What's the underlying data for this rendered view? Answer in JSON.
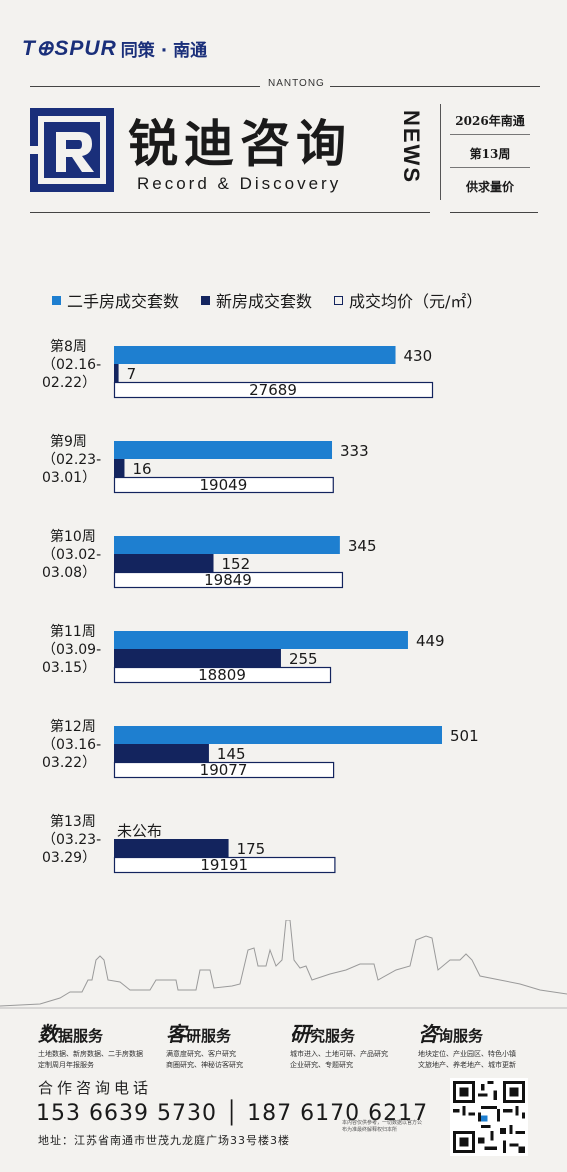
{
  "brand": {
    "logo_text": "T⊕SPUR",
    "name_cn": "同策 · 南通"
  },
  "masthead": {
    "city_en": "NANTONG",
    "title": "锐迪咨询",
    "subtitle": "Record & Discovery",
    "news": "NEWS",
    "side": [
      "2026年南通",
      "第13周",
      "供求量价"
    ]
  },
  "legend": [
    {
      "label": "二手房成交套数",
      "style": "solid",
      "color": "#1e7fd0"
    },
    {
      "label": "新房成交套数",
      "style": "solid",
      "color": "#13245e"
    },
    {
      "label": "成交均价（元/㎡）",
      "style": "outline",
      "color": "#13245e"
    }
  ],
  "colors": {
    "second_hand": "#1e7fd0",
    "new_home": "#13245e",
    "price_border": "#13245e"
  },
  "chart_data": {
    "type": "bar",
    "orientation": "horizontal",
    "categories": [
      [
        "第8周",
        "（02.16-",
        "02.22）"
      ],
      [
        "第9周",
        "（02.23-",
        "03.01）"
      ],
      [
        "第10周",
        "（03.02-",
        "03.08）"
      ],
      [
        "第11周",
        "（03.09-",
        "03.15）"
      ],
      [
        "第12周",
        "（03.16-",
        "03.22）"
      ],
      [
        "第13周",
        "（03.23-",
        "03.29）"
      ]
    ],
    "series": [
      {
        "name": "二手房成交套数",
        "values": [
          430,
          333,
          345,
          449,
          501,
          null
        ],
        "missing_label": "未公布"
      },
      {
        "name": "新房成交套数",
        "values": [
          7,
          16,
          152,
          255,
          145,
          175
        ]
      },
      {
        "name": "成交均价（元/㎡）",
        "values": [
          27689,
          19049,
          19849,
          18809,
          19077,
          19191
        ]
      }
    ]
  },
  "services": [
    {
      "title_big": "数",
      "title_rest": "据服务",
      "desc": [
        "土地数据、新房数据、二手房数据",
        "定制周月年报服务"
      ]
    },
    {
      "title_big": "客",
      "title_rest": "研服务",
      "desc": [
        "满意度研究、客户研究",
        "商圈研究、神秘访客研究"
      ]
    },
    {
      "title_big": "研",
      "title_rest": "究服务",
      "desc": [
        "城市进入、土地可研、产品研究",
        "企业研究、专题研究"
      ]
    },
    {
      "title_big": "咨",
      "title_rest": "询服务",
      "desc": [
        "地块定位、产业园区、特色小镇",
        "文旅地产、养老地产、城市更新"
      ]
    }
  ],
  "contact": {
    "label": "合作咨询电话",
    "phones": "153 6639 5730 │ 187 6170 6217",
    "address": "地址：江苏省南通市世茂九龙庭广场33号楼3楼",
    "note": "本内容仅供参考，一切数据以官方公布为准最终解释权归本所"
  }
}
